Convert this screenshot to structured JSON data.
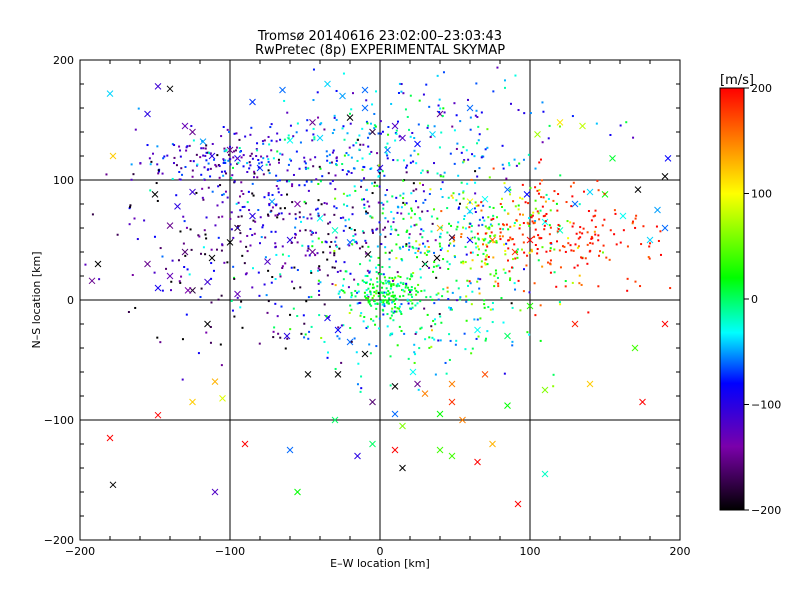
{
  "chart_data": {
    "type": "scatter",
    "title": "Tromsø 20140616 23:02:00–23:03:43",
    "subtitle": "RwPretec (8p) EXPERIMENTAL SKYMAP",
    "xlabel": "E–W location [km]",
    "ylabel": "N–S location [km]",
    "xlim": [
      -200,
      200
    ],
    "ylim": [
      -200,
      200
    ],
    "x_ticks": [
      "−200",
      "−100",
      "0",
      "100",
      "200"
    ],
    "y_ticks": [
      "200",
      "100",
      "0",
      "−100",
      "−200"
    ],
    "grid_lines": {
      "x": [
        -100,
        0,
        100
      ],
      "y": [
        -100,
        0,
        100
      ]
    },
    "colorbar": {
      "label": "[m/s]",
      "range": [
        -200,
        200
      ],
      "ticks": [
        "200",
        "100",
        "0",
        "−100",
        "−200"
      ],
      "colormap": [
        "#000000",
        "#7a00aa",
        "#0000ff",
        "#00ffff",
        "#00ff00",
        "#ffff00",
        "#ff0000"
      ]
    },
    "markers": {
      "dots": "small points",
      "crosses": "x"
    },
    "crosses": [
      [
        -180,
        172,
        -40
      ],
      [
        -178,
        120,
        120
      ],
      [
        -140,
        176,
        -200
      ],
      [
        -148,
        178,
        -110
      ],
      [
        -155,
        155,
        -100
      ],
      [
        -130,
        145,
        -130
      ],
      [
        -125,
        140,
        -150
      ],
      [
        -118,
        132,
        -50
      ],
      [
        -112,
        120,
        -100
      ],
      [
        -100,
        125,
        -150
      ],
      [
        -95,
        118,
        -90
      ],
      [
        -80,
        110,
        -70
      ],
      [
        -60,
        133,
        -30
      ],
      [
        -45,
        148,
        -150
      ],
      [
        -40,
        135,
        -40
      ],
      [
        -25,
        170,
        -50
      ],
      [
        -20,
        152,
        -200
      ],
      [
        -10,
        160,
        -60
      ],
      [
        -5,
        140,
        -180
      ],
      [
        0,
        110,
        -100
      ],
      [
        -85,
        165,
        -70
      ],
      [
        -65,
        175,
        -60
      ],
      [
        -35,
        180,
        -40
      ],
      [
        -10,
        175,
        -60
      ],
      [
        10,
        145,
        -120
      ],
      [
        25,
        130,
        -80
      ],
      [
        40,
        155,
        -150
      ],
      [
        60,
        160,
        -60
      ],
      [
        5,
        125,
        -60
      ],
      [
        15,
        135,
        -120
      ],
      [
        35,
        138,
        -40
      ],
      [
        -125,
        90,
        -110
      ],
      [
        -135,
        78,
        -100
      ],
      [
        -150,
        88,
        -200
      ],
      [
        -140,
        62,
        -150
      ],
      [
        -130,
        40,
        -160
      ],
      [
        -112,
        35,
        -200
      ],
      [
        -100,
        48,
        -200
      ],
      [
        -95,
        60,
        -180
      ],
      [
        -85,
        70,
        -100
      ],
      [
        -72,
        82,
        -50
      ],
      [
        -55,
        80,
        -140
      ],
      [
        -40,
        68,
        -30
      ],
      [
        -30,
        58,
        -20
      ],
      [
        -20,
        48,
        -60
      ],
      [
        -8,
        38,
        -200
      ],
      [
        -45,
        40,
        -150
      ],
      [
        -60,
        50,
        -100
      ],
      [
        -75,
        32,
        -120
      ],
      [
        -155,
        30,
        -150
      ],
      [
        -140,
        20,
        -130
      ],
      [
        -125,
        8,
        -180
      ],
      [
        -115,
        15,
        -110
      ],
      [
        -95,
        5,
        -130
      ],
      [
        -128,
        8,
        -140
      ],
      [
        -148,
        10,
        -90
      ],
      [
        -192,
        16,
        -150
      ],
      [
        -188,
        30,
        -200
      ],
      [
        60,
        74,
        -40
      ],
      [
        70,
        84,
        -30
      ],
      [
        85,
        92,
        -60
      ],
      [
        98,
        88,
        -80
      ],
      [
        110,
        65,
        -30
      ],
      [
        120,
        58,
        -20
      ],
      [
        130,
        80,
        -60
      ],
      [
        140,
        90,
        -40
      ],
      [
        162,
        70,
        -30
      ],
      [
        180,
        50,
        -40
      ],
      [
        185,
        75,
        -50
      ],
      [
        190,
        60,
        -60
      ],
      [
        192,
        118,
        -80
      ],
      [
        190,
        103,
        -200
      ],
      [
        172,
        92,
        -200
      ],
      [
        38,
        35,
        -200
      ],
      [
        48,
        52,
        -180
      ],
      [
        60,
        50,
        -80
      ],
      [
        30,
        30,
        -200
      ],
      [
        40,
        60,
        130
      ],
      [
        75,
        50,
        160
      ],
      [
        90,
        40,
        180
      ],
      [
        100,
        50,
        200
      ],
      [
        60,
        82,
        100
      ],
      [
        120,
        148,
        110
      ],
      [
        135,
        145,
        80
      ],
      [
        105,
        138,
        70
      ],
      [
        155,
        118,
        10
      ],
      [
        150,
        88,
        20
      ],
      [
        -62,
        -30,
        -100
      ],
      [
        -35,
        -15,
        -90
      ],
      [
        -28,
        -25,
        -80
      ],
      [
        -20,
        -35,
        -60
      ],
      [
        -10,
        -45,
        -200
      ],
      [
        -48,
        -62,
        -200
      ],
      [
        -28,
        -62,
        -200
      ],
      [
        10,
        -72,
        -200
      ],
      [
        25,
        -70,
        -150
      ],
      [
        22,
        -60,
        -30
      ],
      [
        30,
        -78,
        150
      ],
      [
        48,
        -70,
        150
      ],
      [
        40,
        -95,
        20
      ],
      [
        55,
        -100,
        150
      ],
      [
        48,
        -85,
        180
      ],
      [
        70,
        -62,
        170
      ],
      [
        85,
        -88,
        20
      ],
      [
        100,
        -5,
        30
      ],
      [
        130,
        -20,
        190
      ],
      [
        170,
        -40,
        40
      ],
      [
        190,
        -20,
        200
      ],
      [
        175,
        -85,
        200
      ],
      [
        140,
        -70,
        120
      ],
      [
        110,
        -75,
        60
      ],
      [
        -115,
        -20,
        -200
      ],
      [
        -110,
        -68,
        130
      ],
      [
        -105,
        -82,
        90
      ],
      [
        -125,
        -85,
        120
      ],
      [
        -90,
        -120,
        200
      ],
      [
        -60,
        -125,
        -60
      ],
      [
        -55,
        -160,
        20
      ],
      [
        -30,
        -100,
        0
      ],
      [
        -15,
        -130,
        -100
      ],
      [
        -5,
        -120,
        0
      ],
      [
        10,
        -95,
        -60
      ],
      [
        15,
        -105,
        60
      ],
      [
        10,
        -125,
        200
      ],
      [
        15,
        -140,
        -200
      ],
      [
        40,
        -125,
        40
      ],
      [
        48,
        -130,
        40
      ],
      [
        65,
        -135,
        200
      ],
      [
        75,
        -120,
        130
      ],
      [
        92,
        -170,
        200
      ],
      [
        -178,
        -154,
        -200
      ],
      [
        -180,
        -115,
        200
      ],
      [
        -148,
        -96,
        200
      ],
      [
        -110,
        -160,
        -120
      ],
      [
        -5,
        -85,
        -160
      ],
      [
        110,
        -145,
        -20
      ],
      [
        85,
        -30,
        0
      ],
      [
        65,
        -25,
        -30
      ]
    ]
  }
}
